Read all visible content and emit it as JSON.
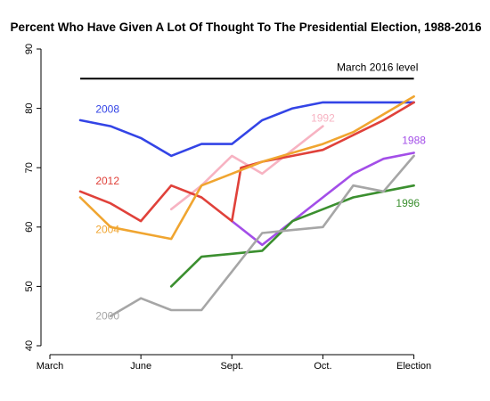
{
  "chart_data": {
    "type": "line",
    "title": "Percent Who Have Given A Lot Of Thought To The Presidential Election, 1988-2016",
    "xlabel": "",
    "ylabel": "",
    "x_ticks": [
      {
        "pos": 0,
        "label": "March"
      },
      {
        "pos": 3,
        "label": "June"
      },
      {
        "pos": 6,
        "label": "Sept."
      },
      {
        "pos": 9,
        "label": "Oct."
      },
      {
        "pos": 12,
        "label": "Election"
      }
    ],
    "xlim": [
      0,
      12.6
    ],
    "ylim": [
      40,
      90
    ],
    "y_ticks": [
      40,
      50,
      60,
      70,
      80,
      90
    ],
    "grid": false,
    "reference_line": {
      "value": 85,
      "label": "March 2016 level",
      "x_start": 1,
      "x_end": 12
    },
    "series": [
      {
        "name": "2008",
        "color": "#3344e6",
        "x": [
          1,
          2,
          3,
          4,
          5,
          6,
          7,
          8,
          9,
          10,
          11,
          12
        ],
        "y": [
          78,
          77,
          75,
          72,
          74,
          74,
          78,
          80,
          81,
          81,
          81,
          81
        ],
        "label_at": [
          1.9,
          79.9
        ]
      },
      {
        "name": "1992",
        "color": "#f7b3c2",
        "x": [
          4,
          5,
          6,
          7,
          8,
          9
        ],
        "y": [
          63,
          67,
          72,
          69,
          73,
          77
        ],
        "label_at": [
          9.0,
          78.4
        ]
      },
      {
        "name": "1988",
        "color": "#a34ee8",
        "x": [
          6,
          7,
          8,
          9,
          10,
          11,
          12
        ],
        "y": [
          61,
          57,
          61,
          65,
          69,
          71.5,
          72.5
        ],
        "label_at": [
          12,
          74.6
        ]
      },
      {
        "name": "2012",
        "color": "#e0413a",
        "x": [
          1,
          2,
          3,
          4,
          5,
          6,
          6.3,
          7,
          8,
          9,
          10,
          11,
          12
        ],
        "y": [
          66,
          64,
          61,
          67,
          65,
          61,
          70,
          71,
          72,
          73,
          75.5,
          78,
          81
        ],
        "label_at": [
          1.9,
          67.8
        ]
      },
      {
        "name": "2004",
        "color": "#f0a530",
        "x": [
          1,
          2,
          3,
          4,
          5,
          6,
          7,
          8,
          9,
          10,
          11,
          12
        ],
        "y": [
          65,
          60,
          59,
          58,
          67,
          69,
          71,
          72.5,
          74,
          76,
          79,
          82
        ],
        "label_at": [
          1.9,
          59.6
        ]
      },
      {
        "name": "1996",
        "color": "#3b8f2f",
        "x": [
          4,
          5,
          6,
          7,
          8,
          9,
          10,
          11,
          12
        ],
        "y": [
          50,
          55,
          55.5,
          56,
          61,
          63,
          65,
          66,
          67
        ],
        "label_at": [
          11.8,
          64
        ]
      },
      {
        "name": "2000",
        "color": "#a6a6a6",
        "x": [
          2,
          3,
          4,
          5,
          6,
          7,
          8,
          9,
          10,
          11,
          12
        ],
        "y": [
          45,
          48,
          46,
          46,
          52.5,
          59,
          59.5,
          60,
          67,
          66,
          72
        ],
        "label_at": [
          1.9,
          45
        ]
      }
    ]
  }
}
